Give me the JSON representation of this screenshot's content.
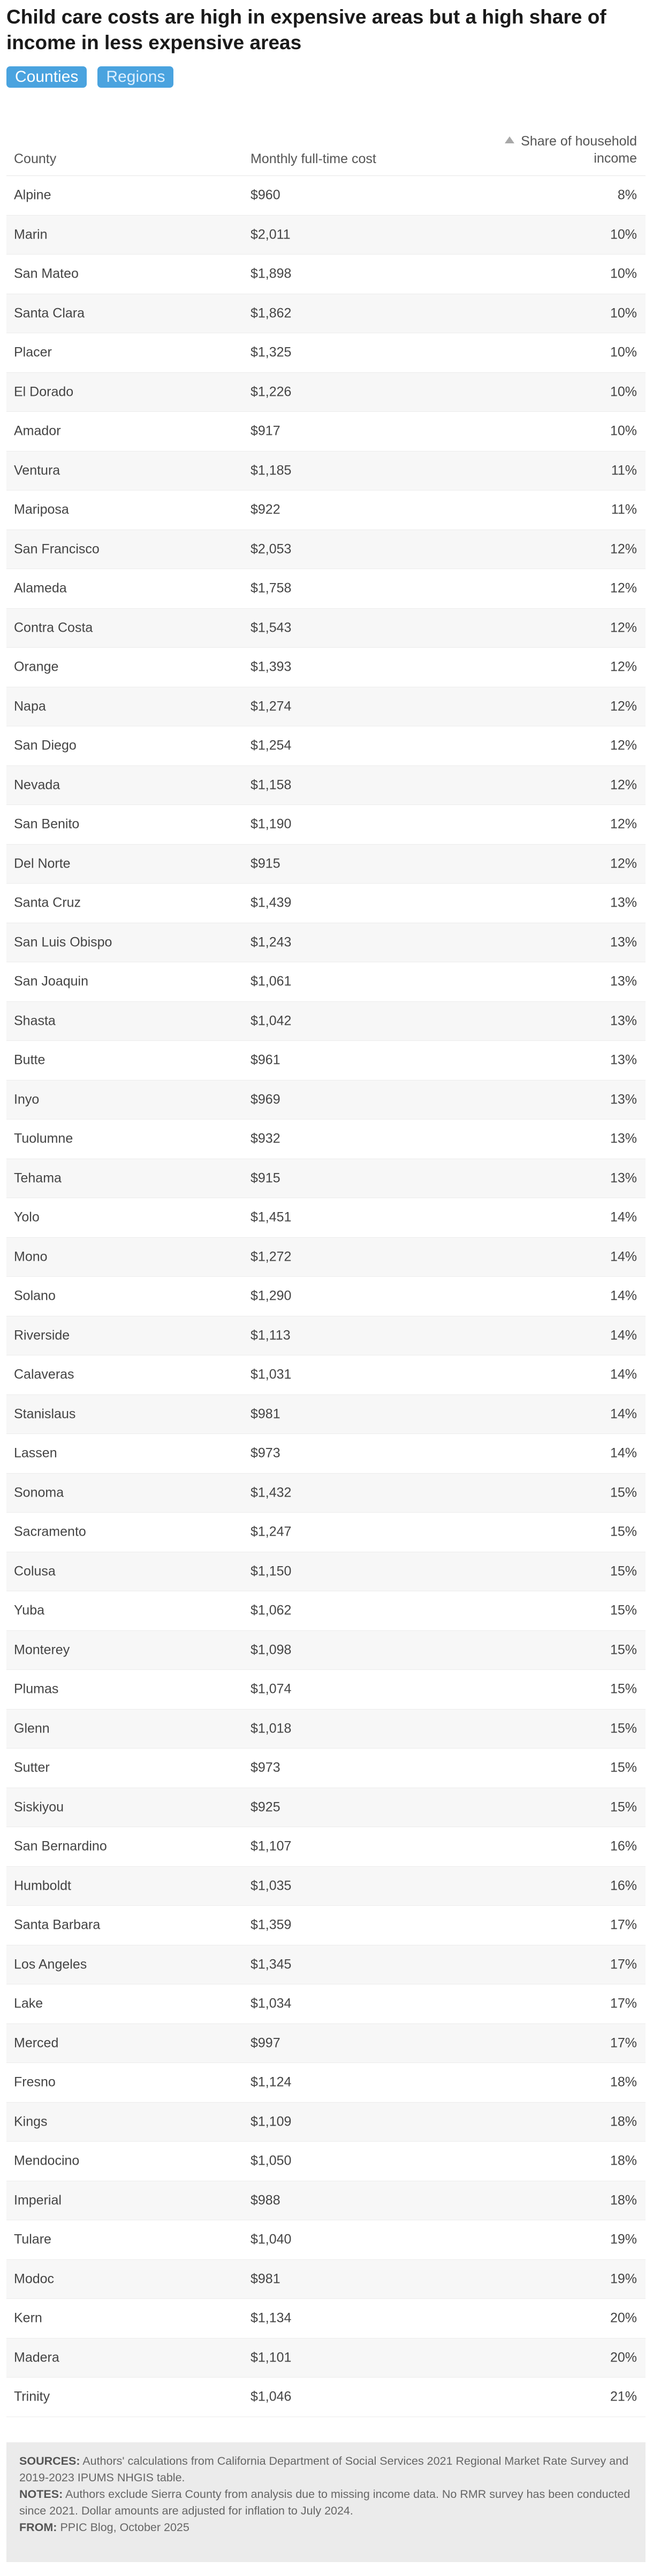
{
  "title": "Child care costs are high in expensive areas but a high share of income in less expensive areas",
  "tabs": [
    {
      "label": "Counties",
      "active": true
    },
    {
      "label": "Regions",
      "active": false
    }
  ],
  "table": {
    "headers": {
      "county": "County",
      "cost": "Monthly full-time cost",
      "share_line1": "Share of household",
      "share_line2": "income",
      "sort_icon": "sort-ascending-icon"
    },
    "rows": [
      {
        "county": "Alpine",
        "cost": "$960",
        "share": "8%"
      },
      {
        "county": "Marin",
        "cost": "$2,011",
        "share": "10%"
      },
      {
        "county": "San Mateo",
        "cost": "$1,898",
        "share": "10%"
      },
      {
        "county": "Santa Clara",
        "cost": "$1,862",
        "share": "10%"
      },
      {
        "county": "Placer",
        "cost": "$1,325",
        "share": "10%"
      },
      {
        "county": "El Dorado",
        "cost": "$1,226",
        "share": "10%"
      },
      {
        "county": "Amador",
        "cost": "$917",
        "share": "10%"
      },
      {
        "county": "Ventura",
        "cost": "$1,185",
        "share": "11%"
      },
      {
        "county": "Mariposa",
        "cost": "$922",
        "share": "11%"
      },
      {
        "county": "San Francisco",
        "cost": "$2,053",
        "share": "12%"
      },
      {
        "county": "Alameda",
        "cost": "$1,758",
        "share": "12%"
      },
      {
        "county": "Contra Costa",
        "cost": "$1,543",
        "share": "12%"
      },
      {
        "county": "Orange",
        "cost": "$1,393",
        "share": "12%"
      },
      {
        "county": "Napa",
        "cost": "$1,274",
        "share": "12%"
      },
      {
        "county": "San Diego",
        "cost": "$1,254",
        "share": "12%"
      },
      {
        "county": "Nevada",
        "cost": "$1,158",
        "share": "12%"
      },
      {
        "county": "San Benito",
        "cost": "$1,190",
        "share": "12%"
      },
      {
        "county": "Del Norte",
        "cost": "$915",
        "share": "12%"
      },
      {
        "county": "Santa Cruz",
        "cost": "$1,439",
        "share": "13%"
      },
      {
        "county": "San Luis Obispo",
        "cost": "$1,243",
        "share": "13%"
      },
      {
        "county": "San Joaquin",
        "cost": "$1,061",
        "share": "13%"
      },
      {
        "county": "Shasta",
        "cost": "$1,042",
        "share": "13%"
      },
      {
        "county": "Butte",
        "cost": "$961",
        "share": "13%"
      },
      {
        "county": "Inyo",
        "cost": "$969",
        "share": "13%"
      },
      {
        "county": "Tuolumne",
        "cost": "$932",
        "share": "13%"
      },
      {
        "county": "Tehama",
        "cost": "$915",
        "share": "13%"
      },
      {
        "county": "Yolo",
        "cost": "$1,451",
        "share": "14%"
      },
      {
        "county": "Mono",
        "cost": "$1,272",
        "share": "14%"
      },
      {
        "county": "Solano",
        "cost": "$1,290",
        "share": "14%"
      },
      {
        "county": "Riverside",
        "cost": "$1,113",
        "share": "14%"
      },
      {
        "county": "Calaveras",
        "cost": "$1,031",
        "share": "14%"
      },
      {
        "county": "Stanislaus",
        "cost": "$981",
        "share": "14%"
      },
      {
        "county": "Lassen",
        "cost": "$973",
        "share": "14%"
      },
      {
        "county": "Sonoma",
        "cost": "$1,432",
        "share": "15%"
      },
      {
        "county": "Sacramento",
        "cost": "$1,247",
        "share": "15%"
      },
      {
        "county": "Colusa",
        "cost": "$1,150",
        "share": "15%"
      },
      {
        "county": "Yuba",
        "cost": "$1,062",
        "share": "15%"
      },
      {
        "county": "Monterey",
        "cost": "$1,098",
        "share": "15%"
      },
      {
        "county": "Plumas",
        "cost": "$1,074",
        "share": "15%"
      },
      {
        "county": "Glenn",
        "cost": "$1,018",
        "share": "15%"
      },
      {
        "county": "Sutter",
        "cost": "$973",
        "share": "15%"
      },
      {
        "county": "Siskiyou",
        "cost": "$925",
        "share": "15%"
      },
      {
        "county": "San Bernardino",
        "cost": "$1,107",
        "share": "16%"
      },
      {
        "county": "Humboldt",
        "cost": "$1,035",
        "share": "16%"
      },
      {
        "county": "Santa Barbara",
        "cost": "$1,359",
        "share": "17%"
      },
      {
        "county": "Los Angeles",
        "cost": "$1,345",
        "share": "17%"
      },
      {
        "county": "Lake",
        "cost": "$1,034",
        "share": "17%"
      },
      {
        "county": "Merced",
        "cost": "$997",
        "share": "17%"
      },
      {
        "county": "Fresno",
        "cost": "$1,124",
        "share": "18%"
      },
      {
        "county": "Kings",
        "cost": "$1,109",
        "share": "18%"
      },
      {
        "county": "Mendocino",
        "cost": "$1,050",
        "share": "18%"
      },
      {
        "county": "Imperial",
        "cost": "$988",
        "share": "18%"
      },
      {
        "county": "Tulare",
        "cost": "$1,040",
        "share": "19%"
      },
      {
        "county": "Modoc",
        "cost": "$981",
        "share": "19%"
      },
      {
        "county": "Kern",
        "cost": "$1,134",
        "share": "20%"
      },
      {
        "county": "Madera",
        "cost": "$1,101",
        "share": "20%"
      },
      {
        "county": "Trinity",
        "cost": "$1,046",
        "share": "21%"
      }
    ]
  },
  "notes": {
    "sources_label": "SOURCES:",
    "sources_text": "Authors' calculations from California Department of Social Services 2021 Regional Market Rate Survey and 2019-2023 IPUMS NHGIS table.",
    "notes_label": "NOTES:",
    "notes_text": "Authors exclude Sierra County from analysis due to missing income data. No RMR survey has been conducted since 2021. Dollar amounts are adjusted for inflation to July 2024.",
    "from_label": "FROM:",
    "from_text": "PPIC Blog, October 2025"
  },
  "colors": {
    "tab_background": "#4aa3df",
    "alt_row": "#f7f7f7",
    "notes_background": "#ebebeb"
  }
}
